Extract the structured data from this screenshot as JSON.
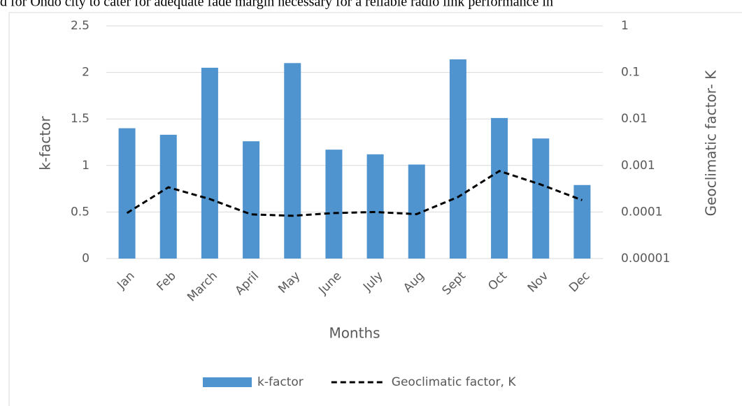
{
  "header_text": "d for Ondo city to cater for adequate fade margin necessary for a reliable radio link performance in",
  "chart_data": {
    "type": "bar-line",
    "categories": [
      "Jan",
      "Feb",
      "March",
      "April",
      "May",
      "June",
      "July",
      "Aug",
      "Sept",
      "Oct",
      "Nov",
      "Dec"
    ],
    "series": [
      {
        "name": "k-factor",
        "type": "bar",
        "color": "#4f94cf",
        "values": [
          1.4,
          1.33,
          2.05,
          1.26,
          2.1,
          1.17,
          1.12,
          1.01,
          2.14,
          1.51,
          1.29,
          0.79
        ]
      },
      {
        "name": "Geoclimatic factor, K",
        "type": "line",
        "axis": "y2",
        "color": "#000000",
        "dashed": true,
        "values": [
          9.5e-05,
          0.00034,
          0.00019,
          8.9e-05,
          8.3e-05,
          9.5e-05,
          0.0001,
          9e-05,
          0.00021,
          0.00076,
          0.00039,
          0.00018
        ]
      }
    ],
    "x_label": "Months",
    "y_label": "k-factor",
    "y2_label": "Geoclimatic factor- K",
    "ylim": [
      0,
      2.5
    ],
    "yticks": [
      0,
      0.5,
      1,
      1.5,
      2,
      2.5
    ],
    "y2lim": [
      1e-05,
      1
    ],
    "y2ticks": [
      1e-05,
      0.0001,
      0.001,
      0.01,
      0.1,
      1
    ],
    "y2scale": "log",
    "grid": true,
    "legend": "bottom"
  }
}
